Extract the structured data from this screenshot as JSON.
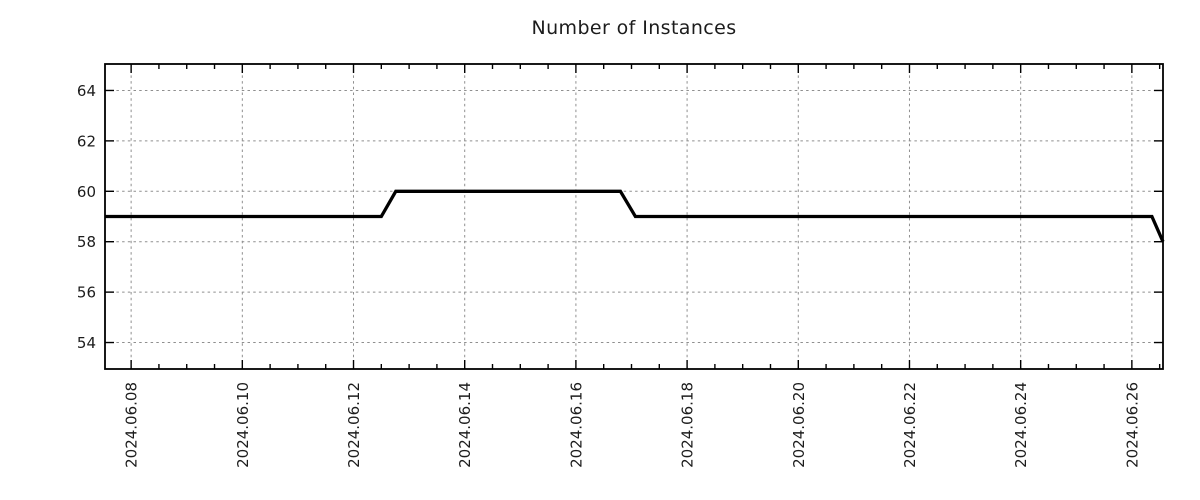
{
  "page": {
    "background": "#ffffff",
    "text_color": "#1c1c1c"
  },
  "chart_data": {
    "type": "line",
    "title": "Number of Instances",
    "xlabel": "",
    "ylabel": "",
    "legend": {
      "shown": false
    },
    "grid": {
      "shown": true,
      "style": "dashed",
      "color": "#8f8f8f"
    },
    "border_color": "#000000",
    "x_axis": {
      "day_offset_origin": "2024.06.08",
      "tick_day_offsets": [
        0,
        2,
        4,
        6,
        8,
        10,
        12,
        14,
        16,
        18
      ],
      "tick_labels": [
        "2024.06.08",
        "2024.06.10",
        "2024.06.12",
        "2024.06.14",
        "2024.06.16",
        "2024.06.18",
        "2024.06.20",
        "2024.06.22",
        "2024.06.24",
        "2024.06.26"
      ],
      "minor_tick_step_days": 0.5,
      "range_days": [
        -0.47,
        18.56
      ]
    },
    "y_axis": {
      "ticks": [
        54,
        56,
        58,
        60,
        62,
        64
      ],
      "tick_labels": [
        "54",
        "56",
        "58",
        "60",
        "62",
        "64"
      ],
      "range": [
        52.95,
        65.05
      ]
    },
    "series": [
      {
        "name": "Number of Instances",
        "color": "#000000",
        "line_width": 3.3,
        "points": [
          {
            "day_offset": -0.47,
            "approx_date": "2024.06.07 ~13:00",
            "value": 59
          },
          {
            "day_offset": 4.5,
            "approx_date": "2024.06.12 ~12:00",
            "value": 59
          },
          {
            "day_offset": 4.76,
            "approx_date": "2024.06.12 ~18:00",
            "value": 60
          },
          {
            "day_offset": 8.8,
            "approx_date": "2024.06.16 ~19:00",
            "value": 60
          },
          {
            "day_offset": 9.07,
            "approx_date": "2024.06.17 ~02:00",
            "value": 59
          },
          {
            "day_offset": 18.36,
            "approx_date": "2024.06.26 ~09:00",
            "value": 59
          },
          {
            "day_offset": 18.56,
            "approx_date": "2024.06.26 ~13:00",
            "value": 58
          }
        ]
      }
    ]
  }
}
